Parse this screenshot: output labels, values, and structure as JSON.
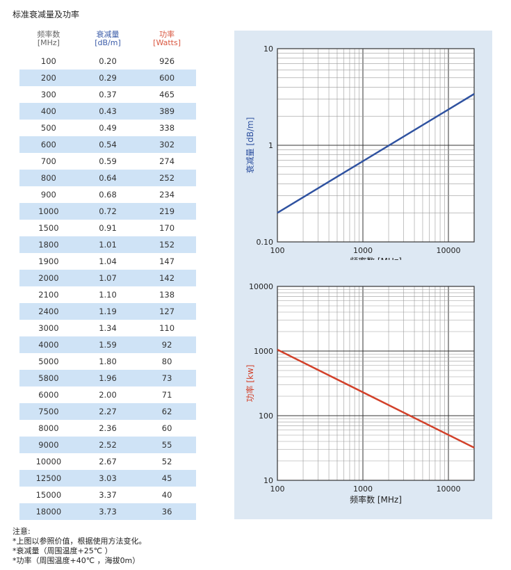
{
  "title": "标准衰减量及功率",
  "table": {
    "headers": [
      {
        "label": "频率数",
        "unit": "[MHz]"
      },
      {
        "label": "衰减量",
        "unit": "[dB/m]"
      },
      {
        "label": "功率",
        "unit": "[Watts]"
      }
    ],
    "rows": [
      [
        "100",
        "0.20",
        "926"
      ],
      [
        "200",
        "0.29",
        "600"
      ],
      [
        "300",
        "0.37",
        "465"
      ],
      [
        "400",
        "0.43",
        "389"
      ],
      [
        "500",
        "0.49",
        "338"
      ],
      [
        "600",
        "0.54",
        "302"
      ],
      [
        "700",
        "0.59",
        "274"
      ],
      [
        "800",
        "0.64",
        "252"
      ],
      [
        "900",
        "0.68",
        "234"
      ],
      [
        "1000",
        "0.72",
        "219"
      ],
      [
        "1500",
        "0.91",
        "170"
      ],
      [
        "1800",
        "1.01",
        "152"
      ],
      [
        "1900",
        "1.04",
        "147"
      ],
      [
        "2000",
        "1.07",
        "142"
      ],
      [
        "2100",
        "1.10",
        "138"
      ],
      [
        "2400",
        "1.19",
        "127"
      ],
      [
        "3000",
        "1.34",
        "110"
      ],
      [
        "4000",
        "1.59",
        "92"
      ],
      [
        "5000",
        "1.80",
        "80"
      ],
      [
        "5800",
        "1.96",
        "73"
      ],
      [
        "6000",
        "2.00",
        "71"
      ],
      [
        "7500",
        "2.27",
        "62"
      ],
      [
        "8000",
        "2.36",
        "60"
      ],
      [
        "9000",
        "2.52",
        "55"
      ],
      [
        "10000",
        "2.67",
        "52"
      ],
      [
        "12500",
        "3.03",
        "45"
      ],
      [
        "15000",
        "3.37",
        "40"
      ],
      [
        "18000",
        "3.73",
        "36"
      ]
    ]
  },
  "notes": {
    "heading": "注意:",
    "lines": [
      "*上图以参照价值，根据使用方法变化。",
      "*衰减量（周围温度+25℃ ）",
      "*功率（周围温度+40℃ ，海拔0m）"
    ]
  },
  "colors": {
    "attenuation": "#2f52a0",
    "power": "#d2412a",
    "stripe": "#cfe3f6",
    "panel": "#dde8f3"
  },
  "chart_data": [
    {
      "type": "line",
      "xscale": "log",
      "yscale": "log",
      "xlim": [
        100,
        20000
      ],
      "ylim": [
        0.1,
        10
      ],
      "xticks": [
        100,
        1000,
        10000
      ],
      "xtick_labels": [
        "100",
        "1000",
        "10000"
      ],
      "yticks": [
        0.1,
        1,
        10
      ],
      "ytick_labels": [
        "0.10",
        "1",
        "10"
      ],
      "xlabel": "频率数 [MHz]",
      "ylabel": "衰减量 [dB/m]",
      "grid": true,
      "series": [
        {
          "x": [
            100,
            20000
          ],
          "y": [
            0.2,
            3.4
          ]
        }
      ]
    },
    {
      "type": "line",
      "xscale": "log",
      "yscale": "log",
      "xlim": [
        100,
        20000
      ],
      "ylim": [
        10,
        10000
      ],
      "xticks": [
        100,
        1000,
        10000
      ],
      "xtick_labels": [
        "100",
        "1000",
        "10000"
      ],
      "yticks": [
        10,
        100,
        1000,
        10000
      ],
      "ytick_labels": [
        "10",
        "100",
        "1000",
        "10000"
      ],
      "xlabel": "频率数 [MHz]",
      "ylabel": "功率 [kw]",
      "grid": true,
      "series": [
        {
          "x": [
            100,
            20000
          ],
          "y": [
            1050,
            32
          ]
        }
      ]
    }
  ]
}
